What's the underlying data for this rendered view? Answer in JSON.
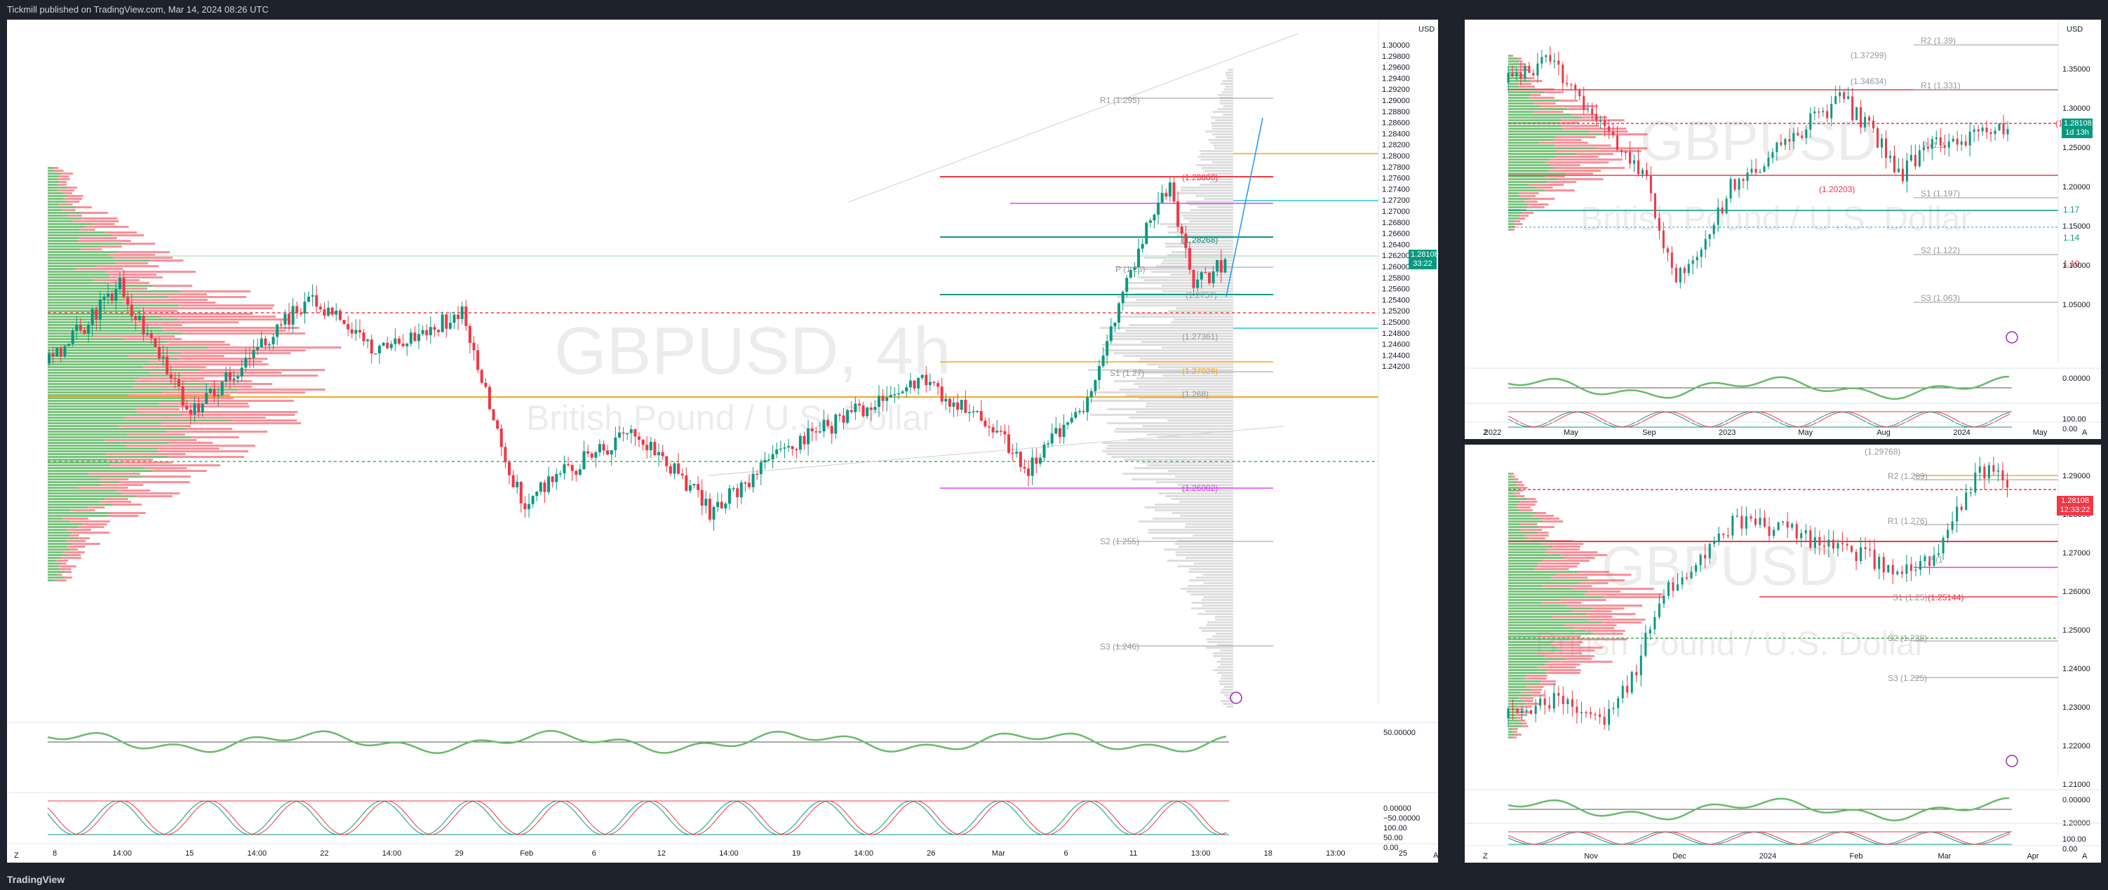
{
  "header": {
    "publisher": "Tickmill published on TradingView.com, Mar 14, 2024 08:26 UTC"
  },
  "footer": {
    "brand": "TradingView"
  },
  "colors": {
    "up": "#089981",
    "down": "#f23645",
    "bg": "#ffffff",
    "frame": "#1e222d"
  },
  "main_chart": {
    "watermark_symbol": "GBPUSD, 4h",
    "watermark_name": "British Pound / U.S. Dollar",
    "currency": "USD",
    "price_badge": "1.28108",
    "countdown": "33:22",
    "price_ticks": [
      "1.30000",
      "1.29800",
      "1.29600",
      "1.29400",
      "1.29200",
      "1.29000",
      "1.28800",
      "1.28600",
      "1.28400",
      "1.28200",
      "1.28000",
      "1.27800",
      "1.27600",
      "1.27400",
      "1.27200",
      "1.27000",
      "1.26800",
      "1.26600",
      "1.26400",
      "1.26200",
      "1.26000",
      "1.25800",
      "1.25600",
      "1.25400",
      "1.25200",
      "1.25000",
      "1.24800",
      "1.24600",
      "1.24400",
      "1.24200"
    ],
    "time_ticks": [
      "8",
      "14:00",
      "15",
      "14:00",
      "22",
      "14:00",
      "29",
      "Feb",
      "6",
      "12",
      "14:00",
      "19",
      "14:00",
      "26",
      "Mar",
      "6",
      "11",
      "13:00",
      "18",
      "13:00",
      "25"
    ],
    "levels": {
      "r1": "R1 (1.295)",
      "p": "P (1.28)",
      "s1": "S1 (1.27)",
      "s2": "S2 (1.255)",
      "s3": "S3 (1.246)",
      "l1": "(1.28800)",
      "l2": "(1.28268)",
      "l3": "(1.27361)",
      "l4": "(1.27029)",
      "l5": "(1.26002)",
      "l6": "(1.2757)",
      "l7": "(1.268)"
    },
    "osc1_ticks": [
      "50.00000",
      "0.00000",
      "−50.00000"
    ],
    "osc2_ticks": [
      "100.00",
      "50.00",
      "0.00"
    ],
    "zoom": "Z",
    "auto": "A"
  },
  "weekly_chart": {
    "watermark_symbol": "GBPUSD",
    "watermark_name": "British Pound / U.S. Dollar",
    "currency": "USD",
    "price_badge": "1.28108",
    "countdown": "1d 13h",
    "price_ticks": [
      "1.35000",
      "1.30000",
      "1.25000",
      "1.20000",
      "1.15000",
      "1.10000",
      "1.05000"
    ],
    "time_ticks": [
      "2022",
      "May",
      "Sep",
      "2023",
      "May",
      "Aug",
      "2024",
      "May"
    ],
    "levels": {
      "r2": "R2 (1.39)",
      "r1": "R1 (1.331)",
      "p": "P (1.2",
      "s1": "S1 (1.197)",
      "s2": "S2 (1.122)",
      "s3": "S3 (1.063)",
      "l1": "(1.37299)",
      "l2": "(1.34634)",
      "l3": "(1.28",
      "l4": "(1.20203)",
      "l5": "1.17",
      "l6": "1.14",
      "l7": "1.10"
    },
    "osc1_ticks": [
      "0.00000"
    ],
    "osc2_ticks": [
      "100.00",
      "0.00"
    ],
    "zoom": "Z",
    "auto": "A"
  },
  "daily_chart": {
    "watermark_symbol": "GBPUSD",
    "watermark_name": "British Pound / U.S. Dollar",
    "price_badge": "1.28108",
    "countdown": "12:33:22",
    "price_ticks": [
      "1.29000",
      "1.28000",
      "1.27000",
      "1.26000",
      "1.25000",
      "1.24000",
      "1.23000",
      "1.22000",
      "1.21000",
      "1.20000"
    ],
    "time_ticks": [
      "Nov",
      "Dec",
      "2024",
      "Feb",
      "Mar",
      "Apr"
    ],
    "levels": {
      "r2": "R2 (1.289)",
      "r1": "R1 (1.276)",
      "p": "P (1",
      "s1": "S1 (1.25)",
      "s2": "S2 (1.238)",
      "s3": "S3 (1.225)",
      "l1": "(1.29768)",
      "l2": "(1.25144)"
    },
    "osc1_ticks": [
      "0.00000"
    ],
    "osc2_ticks": [
      "100.00",
      "0.00"
    ],
    "zoom": "Z",
    "auto": "A"
  }
}
